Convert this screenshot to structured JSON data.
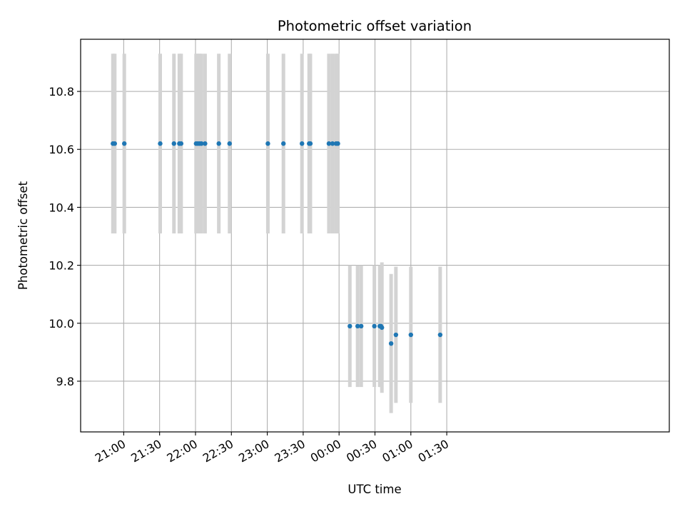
{
  "chart_data": {
    "type": "scatter",
    "title": "Photometric offset variation",
    "xlabel": "UTC time",
    "ylabel": "Photometric offset",
    "x_unit": "minutes since 21:00 UTC",
    "xlim": [
      -36,
      456
    ],
    "ylim": [
      9.625,
      10.98
    ],
    "grid": true,
    "x_ticks": [
      {
        "value": 0,
        "label": "21:00"
      },
      {
        "value": 30,
        "label": "21:30"
      },
      {
        "value": 60,
        "label": "22:00"
      },
      {
        "value": 90,
        "label": "22:30"
      },
      {
        "value": 120,
        "label": "23:00"
      },
      {
        "value": 150,
        "label": "23:30"
      },
      {
        "value": 180,
        "label": "00:00"
      },
      {
        "value": 210,
        "label": "00:30"
      },
      {
        "value": 240,
        "label": "01:00"
      },
      {
        "value": 270,
        "label": "01:30"
      }
    ],
    "y_ticks": [
      {
        "value": 9.8,
        "label": "9.8"
      },
      {
        "value": 10.0,
        "label": "10.0"
      },
      {
        "value": 10.2,
        "label": "10.2"
      },
      {
        "value": 10.4,
        "label": "10.4"
      },
      {
        "value": 10.6,
        "label": "10.6"
      },
      {
        "value": 10.8,
        "label": "10.8"
      }
    ],
    "colors": {
      "point": "#1f77b4",
      "errorbar": "#d3d3d3",
      "grid": "#b0b0b0",
      "axis": "#000000"
    },
    "series": [
      {
        "name": "offset",
        "points": [
          {
            "x": -9,
            "y": 10.62,
            "err": 0.31
          },
          {
            "x": -7.5,
            "y": 10.62,
            "err": 0.31
          },
          {
            "x": 0.5,
            "y": 10.62,
            "err": 0.31
          },
          {
            "x": 30.5,
            "y": 10.62,
            "err": 0.31
          },
          {
            "x": 42,
            "y": 10.62,
            "err": 0.31
          },
          {
            "x": 46.5,
            "y": 10.62,
            "err": 0.31
          },
          {
            "x": 48,
            "y": 10.62,
            "err": 0.31
          },
          {
            "x": 60.5,
            "y": 10.62,
            "err": 0.31
          },
          {
            "x": 62,
            "y": 10.62,
            "err": 0.31
          },
          {
            "x": 63.5,
            "y": 10.62,
            "err": 0.31
          },
          {
            "x": 65,
            "y": 10.62,
            "err": 0.31
          },
          {
            "x": 68,
            "y": 10.62,
            "err": 0.31
          },
          {
            "x": 79.5,
            "y": 10.62,
            "err": 0.31
          },
          {
            "x": 88.5,
            "y": 10.62,
            "err": 0.31
          },
          {
            "x": 120.5,
            "y": 10.62,
            "err": 0.31
          },
          {
            "x": 133.5,
            "y": 10.62,
            "err": 0.31
          },
          {
            "x": 149,
            "y": 10.62,
            "err": 0.31
          },
          {
            "x": 155,
            "y": 10.62,
            "err": 0.31
          },
          {
            "x": 156,
            "y": 10.62,
            "err": 0.31
          },
          {
            "x": 171.5,
            "y": 10.62,
            "err": 0.31
          },
          {
            "x": 174.5,
            "y": 10.62,
            "err": 0.31
          },
          {
            "x": 177.5,
            "y": 10.62,
            "err": 0.31
          },
          {
            "x": 179,
            "y": 10.62,
            "err": 0.31
          },
          {
            "x": 189,
            "y": 9.99,
            "err": 0.21
          },
          {
            "x": 195.5,
            "y": 9.99,
            "err": 0.21
          },
          {
            "x": 198.5,
            "y": 9.99,
            "err": 0.21
          },
          {
            "x": 209.5,
            "y": 9.99,
            "err": 0.21
          },
          {
            "x": 214,
            "y": 9.99,
            "err": 0.21
          },
          {
            "x": 215,
            "y": 9.99,
            "err": 0.21
          },
          {
            "x": 215.8,
            "y": 9.985,
            "err": 0.225
          },
          {
            "x": 223.5,
            "y": 9.93,
            "err": 0.24
          },
          {
            "x": 227.5,
            "y": 9.96,
            "err": 0.235
          },
          {
            "x": 240,
            "y": 9.96,
            "err": 0.235
          },
          {
            "x": 264.5,
            "y": 9.96,
            "err": 0.235
          }
        ]
      }
    ]
  }
}
